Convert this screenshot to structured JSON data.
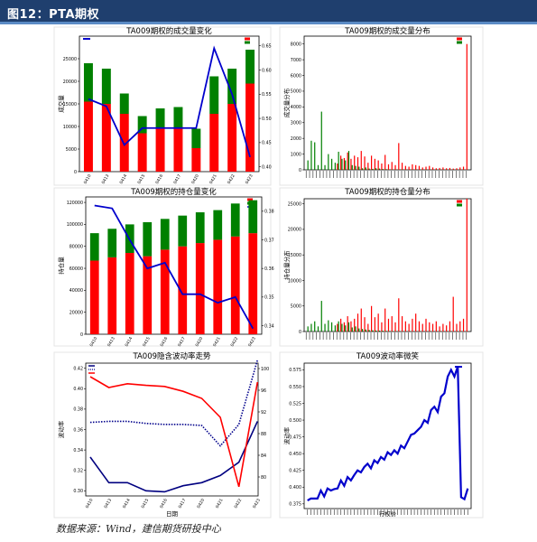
{
  "header": {
    "title": "图12：PTA期权"
  },
  "footer": {
    "source": "数据来源：Wind，建信期货研投中心"
  },
  "chart_data": [
    {
      "type": "bar",
      "id": "volume_by_date",
      "title": "TA009期权的成交量变化",
      "categories": [
        "0410",
        "0413",
        "0414",
        "0415",
        "0416",
        "0417",
        "0420",
        "0421",
        "0422",
        "0423"
      ],
      "series": [
        {
          "name": "",
          "kind": "stacked-bar",
          "color": "#ff0000",
          "values": [
            15500,
            15000,
            12800,
            8500,
            9800,
            9800,
            5200,
            12800,
            15000,
            19500
          ]
        },
        {
          "name": "",
          "kind": "stacked-bar",
          "color": "#008000",
          "values": [
            8500,
            7800,
            4500,
            3800,
            4200,
            4500,
            4300,
            8300,
            7800,
            7500
          ]
        },
        {
          "name": "",
          "kind": "line",
          "axis": "right",
          "color": "#0000cc",
          "values": [
            0.54,
            0.525,
            0.445,
            0.48,
            0.48,
            0.48,
            0.48,
            0.645,
            0.55,
            0.42
          ]
        }
      ],
      "ylabel": "成交量",
      "ylim": [
        0,
        30000
      ],
      "yticks": [
        "0",
        "5000",
        "10000",
        "15000",
        "20000",
        "25000"
      ],
      "y2lim": [
        0.39,
        0.67
      ],
      "y2ticks": [
        "0.40",
        "0.45",
        "0.50",
        "0.55",
        "0.60",
        "0.65"
      ],
      "legend": "top-left and top-right"
    },
    {
      "type": "bar",
      "id": "volume_by_strike",
      "title": "TA009期权的成交量分布",
      "ylabel": "成交量分布",
      "ylim": [
        0,
        8500
      ],
      "yticks": [
        "0",
        "1000",
        "2000",
        "3000",
        "4000",
        "5000",
        "6000",
        "7000",
        "8000"
      ],
      "series": [
        {
          "name": "",
          "color": "#ff0000",
          "values": [
            0,
            0,
            0,
            0,
            0,
            0,
            0,
            0,
            0,
            400,
            900,
            750,
            1100,
            700,
            900,
            800,
            1200,
            850,
            450,
            900,
            700,
            600,
            400,
            950,
            350,
            500,
            300,
            1700,
            450,
            250,
            200,
            350,
            300,
            250,
            150,
            200,
            250,
            150,
            100,
            120,
            150,
            100,
            120,
            80,
            100,
            150,
            200,
            8000
          ]
        },
        {
          "name": "",
          "color": "#008000",
          "values": [
            600,
            1850,
            1750,
            300,
            3700,
            300,
            1000,
            700,
            450,
            1150,
            700,
            600,
            1200,
            300,
            250,
            200,
            100,
            150,
            80,
            60,
            100,
            80,
            50,
            40,
            30,
            20,
            20,
            30,
            20,
            10,
            10,
            10,
            10,
            10,
            10,
            10,
            10,
            10,
            10,
            10,
            10,
            10,
            10,
            10,
            10,
            10,
            10,
            10
          ]
        }
      ],
      "legend": "top-right"
    },
    {
      "type": "bar",
      "id": "open_interest_by_date",
      "title": "TA009期权的持仓量变化",
      "categories": [
        "0410",
        "0413",
        "0414",
        "0415",
        "0416",
        "0417",
        "0420",
        "0421",
        "0422",
        "0423"
      ],
      "series": [
        {
          "name": "",
          "kind": "stacked-bar",
          "color": "#ff0000",
          "values": [
            67000,
            70000,
            74000,
            71000,
            77000,
            80000,
            83000,
            86000,
            89000,
            92000
          ]
        },
        {
          "name": "",
          "kind": "stacked-bar",
          "color": "#008000",
          "values": [
            25000,
            26000,
            26000,
            31000,
            28000,
            28000,
            28000,
            27000,
            30000,
            30000
          ]
        },
        {
          "name": "",
          "kind": "line",
          "axis": "right",
          "color": "#0000cc",
          "values": [
            0.382,
            0.381,
            0.37,
            0.36,
            0.362,
            0.351,
            0.351,
            0.348,
            0.35,
            0.339
          ]
        }
      ],
      "ylabel": "持仓量",
      "ylim": [
        0,
        125000
      ],
      "yticks": [
        "0",
        "20000",
        "40000",
        "60000",
        "80000",
        "100000",
        "120000"
      ],
      "y2lim": [
        0.337,
        0.385
      ],
      "y2ticks": [
        "0.34",
        "0.35",
        "0.36",
        "0.37",
        "0.38"
      ],
      "legend": "top-right"
    },
    {
      "type": "bar",
      "id": "open_interest_by_strike",
      "title": "TA009期权的持仓量分布",
      "ylabel": "持仓量分布",
      "ylim": [
        0,
        26000
      ],
      "yticks": [
        "0",
        "5000",
        "10000",
        "15000",
        "20000",
        "25000"
      ],
      "series": [
        {
          "name": "",
          "color": "#ff0000",
          "values": [
            0,
            0,
            0,
            0,
            0,
            0,
            0,
            0,
            0,
            1500,
            2500,
            1800,
            3000,
            2000,
            2500,
            3500,
            4500,
            2800,
            1500,
            5000,
            2800,
            3500,
            1800,
            4500,
            2500,
            3000,
            1800,
            6500,
            3000,
            2000,
            1500,
            2500,
            3500,
            2000,
            1500,
            2500,
            1800,
            1500,
            2000,
            1000,
            1500,
            1200,
            2000,
            6800,
            1500,
            2000,
            2500,
            26000
          ]
        },
        {
          "name": "",
          "color": "#008000",
          "values": [
            1000,
            1500,
            2000,
            1000,
            6000,
            1500,
            2200,
            1800,
            1200,
            2000,
            1500,
            1200,
            1800,
            800,
            1000,
            600,
            500,
            400,
            300,
            250,
            200,
            180,
            150,
            120,
            100,
            80,
            80,
            60,
            50,
            40,
            40,
            30,
            30,
            30,
            20,
            20,
            20,
            20,
            20,
            20,
            20,
            20,
            20,
            20,
            20,
            20,
            20,
            20
          ]
        }
      ],
      "legend": "top-right"
    },
    {
      "type": "line",
      "id": "hv_iv_trend",
      "title": "TA009隐含波动率走势",
      "categories": [
        "0410",
        "0413",
        "0414",
        "0415",
        "0416",
        "0417",
        "0420",
        "0421",
        "0422",
        "0423"
      ],
      "xlabel": "日期",
      "ylabel": "波动率",
      "series": [
        {
          "name": "",
          "color": "#000080",
          "style": "solid",
          "axis": "left",
          "values": [
            0.333,
            0.308,
            0.308,
            0.3,
            0.299,
            0.305,
            0.308,
            0.315,
            0.328,
            0.368
          ]
        },
        {
          "name": "",
          "color": "#00008b",
          "style": "dotted",
          "axis": "left",
          "values": [
            0.367,
            0.368,
            0.368,
            0.366,
            0.365,
            0.365,
            0.364,
            0.344,
            0.365,
            0.428
          ]
        },
        {
          "name": "",
          "color": "#ff0000",
          "style": "solid",
          "axis": "right",
          "values": [
            98.5,
            96.5,
            97.2,
            96.9,
            96.7,
            95.8,
            94.5,
            91.0,
            78.2,
            97.5
          ]
        }
      ],
      "ylim": [
        0.295,
        0.425
      ],
      "yticks": [
        "0.30",
        "0.32",
        "0.34",
        "0.36",
        "0.38",
        "0.40",
        "0.42"
      ],
      "y2lim": [
        76.5,
        101
      ],
      "y2ticks": [
        "80",
        "84",
        "88",
        "92",
        "96",
        "100"
      ],
      "legend": "top-left"
    },
    {
      "type": "line",
      "id": "volatility_smile",
      "title": "TA009波动率微笑",
      "xlabel": "行权价",
      "ylabel": "波动率",
      "ylim": [
        0.368,
        0.585
      ],
      "yticks": [
        "0.375",
        "0.400",
        "0.425",
        "0.450",
        "0.475",
        "0.500",
        "0.525",
        "0.550",
        "0.575"
      ],
      "series": [
        {
          "name": "",
          "color": "#0000cc",
          "values": [
            0.38,
            0.383,
            0.383,
            0.383,
            0.395,
            0.386,
            0.398,
            0.395,
            0.397,
            0.398,
            0.41,
            0.402,
            0.415,
            0.41,
            0.418,
            0.425,
            0.422,
            0.43,
            0.435,
            0.428,
            0.44,
            0.436,
            0.445,
            0.441,
            0.452,
            0.448,
            0.455,
            0.45,
            0.462,
            0.458,
            0.468,
            0.478,
            0.48,
            0.485,
            0.49,
            0.5,
            0.496,
            0.515,
            0.52,
            0.512,
            0.535,
            0.54,
            0.565,
            0.575,
            0.565,
            0.58,
            0.385,
            0.382,
            0.398
          ]
        }
      ],
      "legend": "top-right"
    }
  ]
}
